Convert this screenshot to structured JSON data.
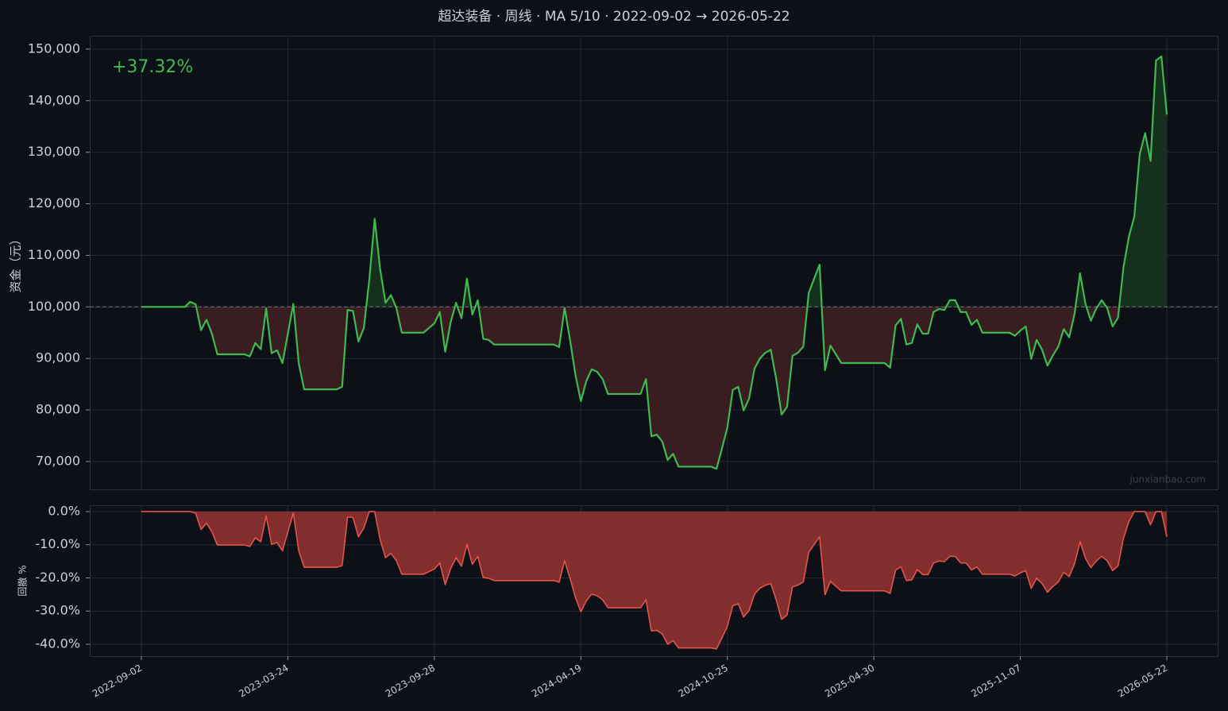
{
  "chart_data": [
    {
      "type": "line",
      "title": "超达装备 · 周线 · MA 5/10 · 2022-09-02 → 2026-05-22",
      "annotation": "+37.32%",
      "ylabel": "资金（元）",
      "watermark": "junxianbao.com",
      "baseline": 100000,
      "color": "#3fb950",
      "fill_above": "#15301d",
      "fill_below": "#3a1d20",
      "grid": true,
      "ylim": [
        64600,
        152600
      ],
      "yticks": [
        {
          "value": 70000,
          "label": "70,000"
        },
        {
          "value": 80000,
          "label": "80,000"
        },
        {
          "value": 90000,
          "label": "90,000"
        },
        {
          "value": 100000,
          "label": "100,000"
        },
        {
          "value": 110000,
          "label": "110,000"
        },
        {
          "value": 120000,
          "label": "120,000"
        },
        {
          "value": 130000,
          "label": "130,000"
        },
        {
          "value": 140000,
          "label": "140,000"
        },
        {
          "value": 150000,
          "label": "150,000"
        }
      ],
      "values": [
        100000,
        100000,
        100000,
        100000,
        100000,
        100000,
        100000,
        100000,
        100000,
        101000,
        100500,
        95500,
        97500,
        94800,
        90800,
        90800,
        90800,
        90800,
        90800,
        90800,
        90400,
        93000,
        91800,
        99700,
        91000,
        91600,
        89100,
        94800,
        100600,
        89100,
        84000,
        84000,
        84000,
        84000,
        84000,
        84000,
        84000,
        84500,
        99400,
        99200,
        93300,
        95900,
        105200,
        117100,
        107300,
        100800,
        102300,
        99800,
        95000,
        95000,
        95000,
        95000,
        95000,
        95900,
        96800,
        99000,
        91300,
        97000,
        100800,
        97800,
        105500,
        98500,
        101300,
        93800,
        93600,
        92700,
        92700,
        92700,
        92700,
        92700,
        92700,
        92700,
        92700,
        92700,
        92700,
        92700,
        92700,
        92200,
        99800,
        93600,
        86800,
        81700,
        85600,
        87900,
        87400,
        86000,
        83100,
        83100,
        83100,
        83100,
        83100,
        83100,
        83100,
        86000,
        74900,
        75200,
        73900,
        70300,
        71500,
        69000,
        69000,
        69000,
        69000,
        69000,
        69000,
        69000,
        68600,
        72500,
        76600,
        83900,
        84500,
        79900,
        82200,
        88000,
        90000,
        91100,
        91700,
        86000,
        79100,
        80600,
        90500,
        91100,
        92300,
        102700,
        105500,
        108200,
        87700,
        92500,
        90800,
        89100,
        89100,
        89100,
        89100,
        89100,
        89100,
        89100,
        89100,
        89100,
        88200,
        96400,
        97700,
        92700,
        93000,
        96600,
        94800,
        94800,
        99000,
        99600,
        99400,
        101300,
        101300,
        99000,
        99000,
        96500,
        97500,
        95000,
        95000,
        95000,
        95000,
        95000,
        95000,
        94400,
        95400,
        96200,
        89900,
        93600,
        91700,
        88600,
        90600,
        92300,
        95700,
        94100,
        98700,
        106500,
        100600,
        97300,
        99700,
        101300,
        99800,
        96200,
        97900,
        107600,
        113600,
        117500,
        129600,
        133700,
        128300,
        147800,
        148600,
        137300
      ]
    },
    {
      "type": "area",
      "ylabel": "回撤 %",
      "color": "#e5534b",
      "fill": "#8f3232",
      "grid": true,
      "ylim": [
        -43.6,
        1.9
      ],
      "yticks": [
        {
          "value": 0,
          "label": "0.0%"
        },
        {
          "value": -10,
          "label": "-10.0%"
        },
        {
          "value": -20,
          "label": "-20.0%"
        },
        {
          "value": -30,
          "label": "-30.0%"
        },
        {
          "value": -40,
          "label": "-40.0%"
        }
      ],
      "categories": [
        "2022-09-02",
        null,
        null,
        null,
        null,
        null,
        null,
        null,
        null,
        null,
        null,
        null,
        null,
        null,
        null,
        null,
        null,
        null,
        null,
        null,
        null,
        null,
        null,
        null,
        null,
        null,
        null,
        "2023-03-24",
        null,
        null,
        null,
        null,
        null,
        null,
        null,
        null,
        null,
        null,
        null,
        null,
        null,
        null,
        null,
        null,
        null,
        null,
        null,
        null,
        null,
        null,
        null,
        null,
        null,
        null,
        "2023-09-28",
        null,
        null,
        null,
        null,
        null,
        null,
        null,
        null,
        null,
        null,
        null,
        null,
        null,
        null,
        null,
        null,
        null,
        null,
        null,
        null,
        null,
        null,
        null,
        null,
        null,
        null,
        "2024-04-19",
        null,
        null,
        null,
        null,
        null,
        null,
        null,
        null,
        null,
        null,
        null,
        null,
        null,
        null,
        null,
        null,
        null,
        null,
        null,
        null,
        null,
        null,
        null,
        null,
        null,
        null,
        "2024-10-25",
        null,
        null,
        null,
        null,
        null,
        null,
        null,
        null,
        null,
        null,
        null,
        null,
        null,
        null,
        null,
        null,
        null,
        null,
        null,
        null,
        null,
        null,
        null,
        null,
        null,
        null,
        "2025-04-30",
        null,
        null,
        null,
        null,
        null,
        null,
        null,
        null,
        null,
        null,
        null,
        null,
        null,
        null,
        null,
        null,
        null,
        null,
        null,
        null,
        null,
        null,
        null,
        null,
        null,
        null,
        "2025-11-07",
        null,
        null,
        null,
        null,
        null,
        null,
        null,
        null,
        null,
        null,
        null,
        null,
        null,
        null,
        null,
        null,
        null,
        null,
        null,
        null,
        null,
        null,
        null,
        null,
        null,
        null,
        "2026-05-22"
      ],
      "values": [
        0,
        0,
        0,
        0,
        0,
        0,
        0,
        0,
        0,
        0,
        -0.5,
        -5.4,
        -3.5,
        -6.1,
        -10.1,
        -10.1,
        -10.1,
        -10.1,
        -10.1,
        -10.1,
        -10.5,
        -7.9,
        -9.1,
        -1.3,
        -9.9,
        -9.3,
        -11.8,
        -6.1,
        -0.4,
        -11.8,
        -16.8,
        -16.8,
        -16.8,
        -16.8,
        -16.8,
        -16.8,
        -16.8,
        -16.3,
        -1.6,
        -1.8,
        -7.6,
        -5.0,
        0,
        0,
        -8.4,
        -13.9,
        -12.6,
        -14.8,
        -18.9,
        -18.9,
        -18.9,
        -18.9,
        -18.9,
        -18.1,
        -17.3,
        -15.5,
        -22.0,
        -17.2,
        -13.9,
        -16.5,
        -9.9,
        -15.9,
        -13.5,
        -19.9,
        -20.1,
        -20.8,
        -20.8,
        -20.8,
        -20.8,
        -20.8,
        -20.8,
        -20.8,
        -20.8,
        -20.8,
        -20.8,
        -20.8,
        -20.8,
        -21.3,
        -14.8,
        -20.1,
        -25.9,
        -30.2,
        -26.9,
        -24.9,
        -25.4,
        -26.6,
        -29.0,
        -29.0,
        -29.0,
        -29.0,
        -29.0,
        -29.0,
        -29.0,
        -26.6,
        -36.0,
        -35.8,
        -36.9,
        -40.0,
        -38.9,
        -41.1,
        -41.1,
        -41.1,
        -41.1,
        -41.1,
        -41.1,
        -41.1,
        -41.4,
        -38.1,
        -34.6,
        -28.4,
        -27.8,
        -31.8,
        -29.8,
        -24.9,
        -23.1,
        -22.2,
        -21.7,
        -26.6,
        -32.5,
        -31.2,
        -22.7,
        -22.2,
        -21.2,
        -12.3,
        -9.9,
        -7.6,
        -25.1,
        -21.0,
        -22.5,
        -23.9,
        -23.9,
        -23.9,
        -23.9,
        -23.9,
        -23.9,
        -23.9,
        -23.9,
        -23.9,
        -24.7,
        -17.7,
        -16.6,
        -20.8,
        -20.6,
        -17.5,
        -19.0,
        -19.0,
        -15.5,
        -14.9,
        -15.1,
        -13.5,
        -13.5,
        -15.5,
        -15.5,
        -17.6,
        -16.7,
        -18.9,
        -18.9,
        -18.9,
        -18.9,
        -18.9,
        -18.9,
        -19.4,
        -18.5,
        -17.8,
        -23.2,
        -20.1,
        -21.7,
        -24.3,
        -22.6,
        -21.2,
        -18.3,
        -19.6,
        -15.7,
        -9.1,
        -14.1,
        -16.9,
        -14.9,
        -13.5,
        -14.8,
        -17.8,
        -16.4,
        -8.1,
        -3.0,
        0,
        0,
        0,
        -4.0,
        0,
        0,
        -7.6
      ]
    }
  ]
}
